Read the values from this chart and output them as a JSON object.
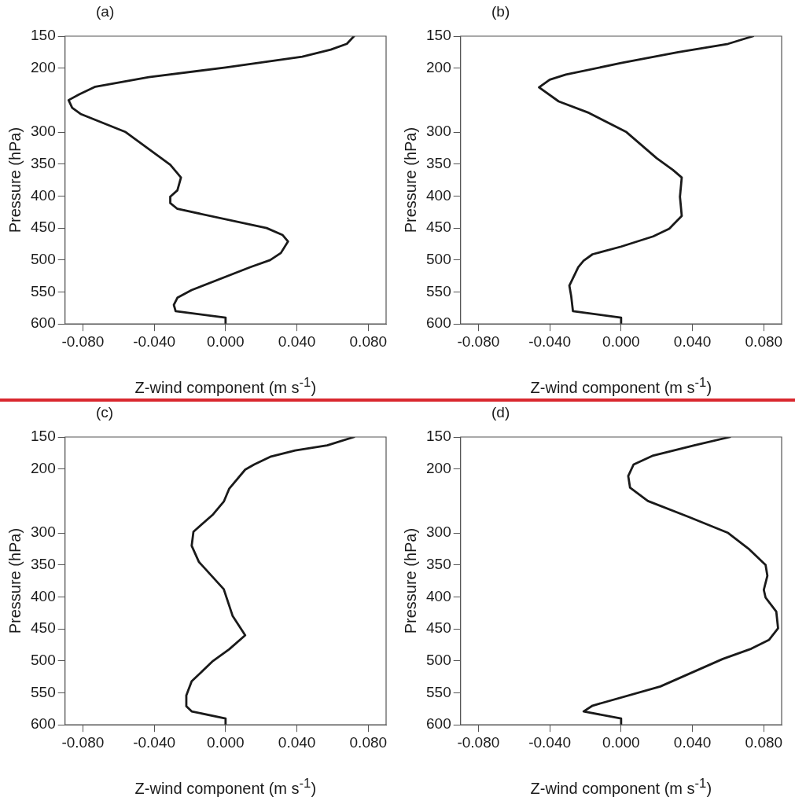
{
  "chart_data": [
    {
      "type": "line",
      "title": "(a)",
      "xlabel": "Z-wind component (m s$^{-1}$)",
      "ylabel": "Pressure (hPa)",
      "color": "#1a1a1a",
      "x": [
        0.072,
        0.068,
        0.059,
        0.043,
        0.0,
        -0.043,
        -0.073,
        -0.082,
        -0.088,
        -0.086,
        -0.081,
        -0.056,
        -0.031,
        -0.025,
        -0.027,
        -0.031,
        -0.031,
        -0.027,
        0.023,
        0.032,
        0.035,
        0.031,
        0.025,
        0.014,
        -0.019,
        -0.027,
        -0.029,
        -0.028,
        0.0,
        0.0
      ],
      "values": [
        150,
        162,
        171,
        182,
        199,
        214,
        229,
        241,
        250,
        262,
        272,
        300,
        351,
        371,
        391,
        401,
        411,
        420,
        450,
        461,
        471,
        489,
        500,
        511,
        547,
        559,
        570,
        580,
        590,
        600
      ],
      "xlim": [
        -0.09,
        0.09
      ],
      "xticks": [
        {
          "value": -0.08,
          "label": "-0.080"
        },
        {
          "value": -0.04,
          "label": "-0.040"
        },
        {
          "value": 0,
          "label": "0.000"
        },
        {
          "value": 0.04,
          "label": "0.040"
        },
        {
          "value": 0.08,
          "label": "0.080"
        }
      ],
      "ylim": [
        600,
        150
      ],
      "yticks": [
        150,
        200,
        300,
        350,
        400,
        450,
        500,
        550,
        600
      ]
    },
    {
      "type": "line",
      "title": "(b)",
      "xlabel": "Z-wind component (m s$^{-1}$)",
      "ylabel": "Pressure (hPa)",
      "color": "#1a1a1a",
      "x": [
        0.074,
        0.06,
        0.032,
        0.0,
        -0.031,
        -0.04,
        -0.046,
        -0.035,
        -0.018,
        0.003,
        0.02,
        0.029,
        0.034,
        0.033,
        0.034,
        0.027,
        0.018,
        0.0,
        -0.016,
        -0.021,
        -0.024,
        -0.029,
        -0.028,
        -0.027,
        0.0,
        0.0
      ],
      "values": [
        150,
        162,
        175,
        192,
        210,
        218,
        230,
        252,
        270,
        300,
        341,
        359,
        371,
        401,
        431,
        451,
        463,
        479,
        491,
        501,
        511,
        540,
        556,
        580,
        590,
        600
      ],
      "xlim": [
        -0.09,
        0.09
      ],
      "xticks": [
        {
          "value": -0.08,
          "label": "-0.080"
        },
        {
          "value": -0.04,
          "label": "-0.040"
        },
        {
          "value": 0,
          "label": "0.000"
        },
        {
          "value": 0.04,
          "label": "0.040"
        },
        {
          "value": 0.08,
          "label": "0.080"
        }
      ],
      "ylim": [
        600,
        150
      ],
      "yticks": [
        150,
        200,
        300,
        350,
        400,
        450,
        500,
        550,
        600
      ]
    },
    {
      "type": "line",
      "title": "(c)",
      "xlabel": "Z-wind component (m s$^{-1}$)",
      "ylabel": "Pressure (hPa)",
      "color": "#1a1a1a",
      "x": [
        0.072,
        0.057,
        0.039,
        0.025,
        0.016,
        0.011,
        0.002,
        -0.001,
        -0.007,
        -0.018,
        -0.019,
        -0.015,
        -0.001,
        0.004,
        0.011,
        0.002,
        -0.007,
        -0.019,
        -0.022,
        -0.022,
        -0.019,
        0.0,
        0.0
      ],
      "values": [
        150,
        163,
        171,
        181,
        193,
        201,
        231,
        251,
        271,
        298,
        320,
        345,
        388,
        430,
        460,
        482,
        500,
        532,
        554,
        571,
        579,
        590,
        600
      ],
      "xlim": [
        -0.09,
        0.09
      ],
      "xticks": [
        {
          "value": -0.08,
          "label": "-0.080"
        },
        {
          "value": -0.04,
          "label": "-0.040"
        },
        {
          "value": 0,
          "label": "0.000"
        },
        {
          "value": 0.04,
          "label": "0.040"
        },
        {
          "value": 0.08,
          "label": "0.080"
        }
      ],
      "ylim": [
        600,
        150
      ],
      "yticks": [
        150,
        200,
        300,
        350,
        400,
        450,
        500,
        550,
        600
      ]
    },
    {
      "type": "line",
      "title": "(d)",
      "xlabel": "Z-wind component (m s$^{-1}$)",
      "ylabel": "Pressure (hPa)",
      "color": "#1a1a1a",
      "x": [
        0.061,
        0.041,
        0.018,
        0.007,
        0.004,
        0.005,
        0.015,
        0.038,
        0.06,
        0.072,
        0.081,
        0.082,
        0.08,
        0.081,
        0.087,
        0.088,
        0.083,
        0.073,
        0.057,
        0.022,
        -0.016,
        -0.021,
        0.0,
        0.0
      ],
      "values": [
        150,
        163,
        179,
        193,
        211,
        229,
        250,
        275,
        300,
        326,
        350,
        367,
        389,
        401,
        423,
        449,
        467,
        481,
        497,
        540,
        570,
        579,
        590,
        600
      ],
      "xlim": [
        -0.09,
        0.09
      ],
      "xticks": [
        {
          "value": -0.08,
          "label": "-0.080"
        },
        {
          "value": -0.04,
          "label": "-0.040"
        },
        {
          "value": 0,
          "label": "0.000"
        },
        {
          "value": 0.04,
          "label": "0.040"
        },
        {
          "value": 0.08,
          "label": "0.080"
        }
      ],
      "ylim": [
        600,
        150
      ],
      "yticks": [
        150,
        200,
        300,
        350,
        400,
        450,
        500,
        550,
        600
      ]
    }
  ]
}
